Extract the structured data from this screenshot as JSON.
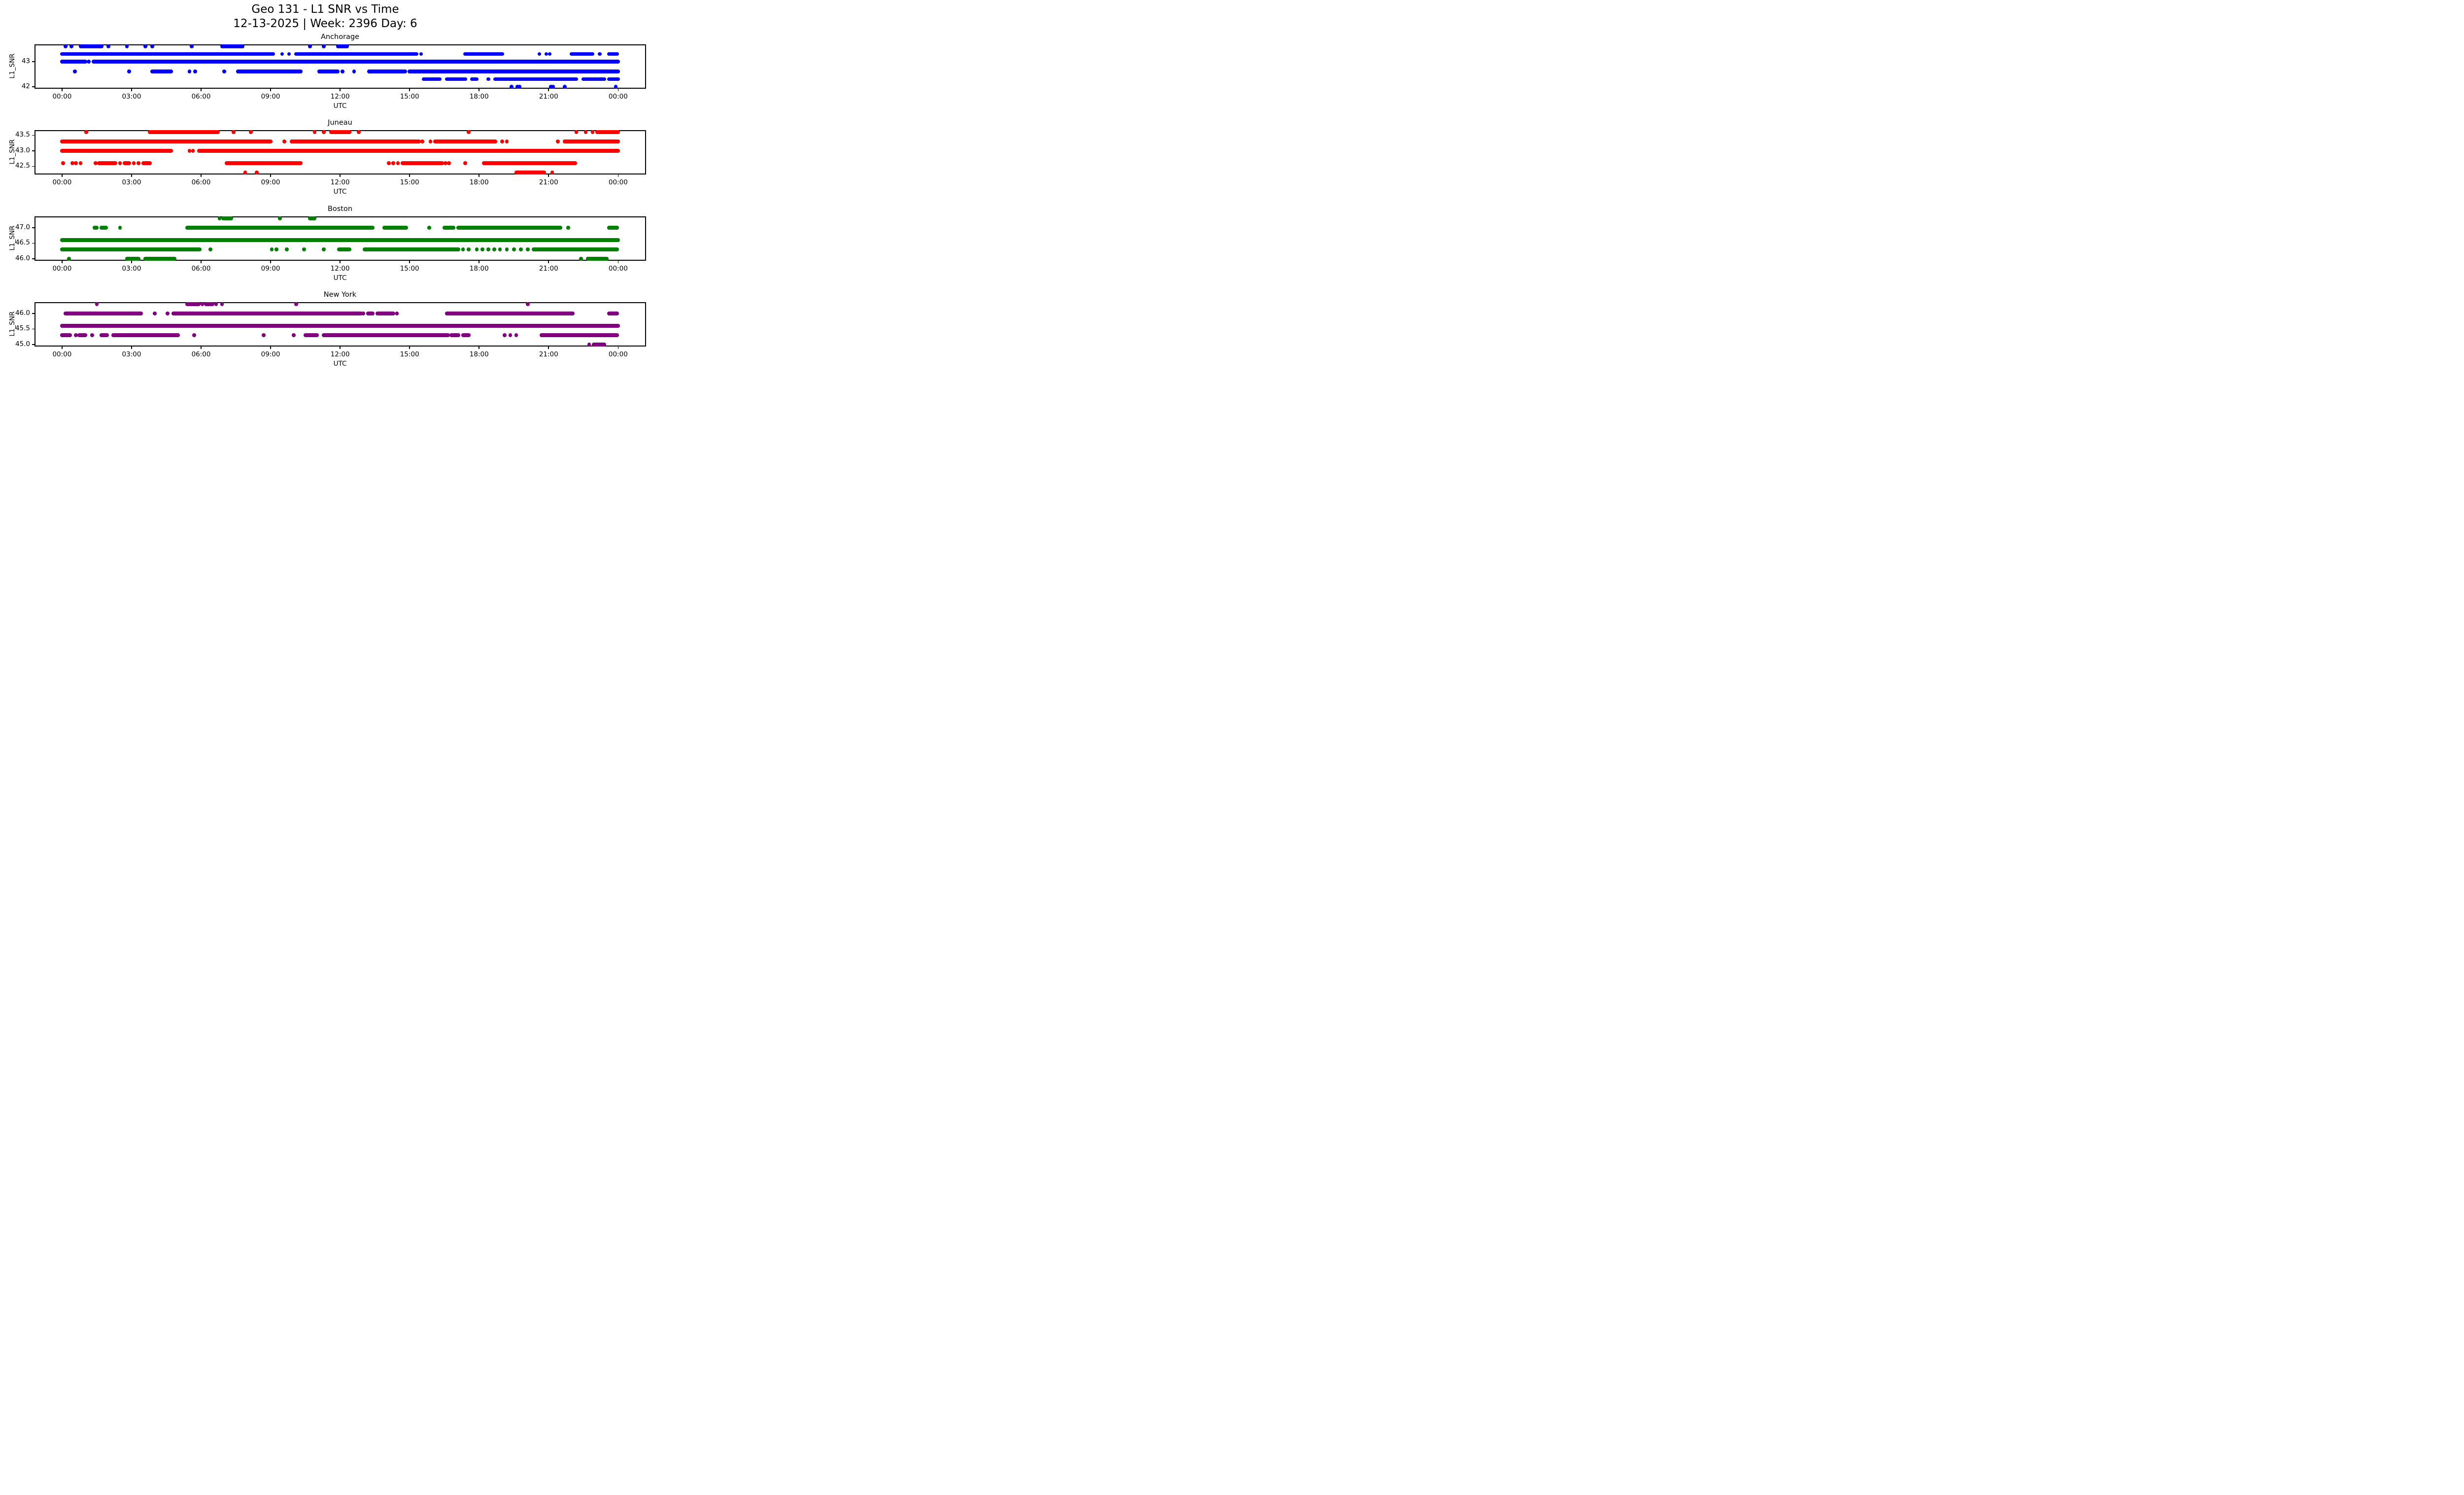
{
  "title": {
    "line1": "Geo 131 - L1 SNR vs Time",
    "line2": "12-13-2025 | Week: 2396 Day: 6"
  },
  "axis": {
    "xlabel": "UTC",
    "ylabel": "L1_SNR",
    "x_tick_hours": [
      0,
      3,
      6,
      9,
      12,
      15,
      18,
      21,
      24
    ],
    "x_tick_labels": [
      "00:00",
      "03:00",
      "06:00",
      "09:00",
      "12:00",
      "15:00",
      "18:00",
      "21:00",
      "00:00"
    ],
    "x_range_hours": [
      -1.2,
      25.2
    ]
  },
  "chart_data": [
    {
      "type": "scatter",
      "city": "Anchorage",
      "color": "#0000ff",
      "ylim": [
        41.92,
        43.68
      ],
      "yticks": [
        {
          "value": 43,
          "label": "43"
        },
        {
          "value": 42,
          "label": "42"
        }
      ],
      "levels": [
        {
          "value": 43.6,
          "segments": [
            [
              0.8,
              1.7
            ],
            [
              6.9,
              7.8
            ],
            [
              11.9,
              12.3
            ]
          ],
          "points": [
            0.15,
            0.4,
            2.0,
            2.8,
            3.6,
            3.9,
            5.6,
            10.7,
            11.3
          ]
        },
        {
          "value": 43.3,
          "segments": [
            [
              0.0,
              9.1
            ],
            [
              10.1,
              15.3
            ],
            [
              17.4,
              19.0
            ],
            [
              22.0,
              22.9
            ],
            [
              23.6,
              23.95
            ]
          ],
          "points": [
            9.5,
            9.8,
            15.5,
            20.6,
            20.9,
            21.05,
            23.2
          ]
        },
        {
          "value": 43.0,
          "segments": [
            [
              0.0,
              1.0
            ],
            [
              1.35,
              24.0
            ]
          ],
          "points": [
            1.15
          ]
        },
        {
          "value": 42.6,
          "segments": [
            [
              3.9,
              4.7
            ],
            [
              7.6,
              10.3
            ],
            [
              11.1,
              11.9
            ],
            [
              13.25,
              14.8
            ],
            [
              15.0,
              24.0
            ]
          ],
          "points": [
            0.55,
            2.9,
            5.5,
            5.75,
            7.0,
            12.1,
            12.6
          ]
        },
        {
          "value": 42.3,
          "segments": [
            [
              15.6,
              16.3
            ],
            [
              16.6,
              17.4
            ],
            [
              17.7,
              17.9
            ],
            [
              18.7,
              22.2
            ],
            [
              22.5,
              23.4
            ],
            [
              23.6,
              24.0
            ]
          ],
          "points": [
            18.4
          ]
        },
        {
          "value": 42.0,
          "segments": [],
          "points": [
            19.4,
            19.65,
            19.75,
            21.1,
            21.2,
            21.7,
            23.9
          ]
        }
      ]
    },
    {
      "type": "scatter",
      "city": "Juneau",
      "color": "#ff0000",
      "ylim": [
        42.235,
        43.665
      ],
      "yticks": [
        {
          "value": 43.5,
          "label": "43.5"
        },
        {
          "value": 43.0,
          "label": "43.0"
        },
        {
          "value": 42.5,
          "label": "42.5"
        }
      ],
      "levels": [
        {
          "value": 43.6,
          "segments": [
            [
              3.78,
              6.72
            ],
            [
              11.6,
              12.4
            ],
            [
              23.1,
              24.0
            ]
          ],
          "points": [
            1.05,
            7.4,
            8.15,
            10.9,
            11.3,
            12.8,
            17.55,
            22.2,
            22.6,
            22.9
          ]
        },
        {
          "value": 43.3,
          "segments": [
            [
              0.0,
              9.0
            ],
            [
              9.9,
              15.4
            ],
            [
              16.1,
              18.7
            ],
            [
              21.7,
              24.0
            ]
          ],
          "points": [
            9.6,
            15.55,
            15.9,
            19.0,
            19.2,
            21.4
          ]
        },
        {
          "value": 43.0,
          "segments": [
            [
              0.0,
              4.7
            ],
            [
              5.9,
              24.0
            ]
          ],
          "points": [
            5.5,
            5.65
          ]
        },
        {
          "value": 42.6,
          "segments": [
            [
              1.6,
              2.3
            ],
            [
              2.7,
              2.9
            ],
            [
              3.5,
              3.8
            ],
            [
              7.1,
              10.3
            ],
            [
              14.7,
              16.4
            ],
            [
              18.2,
              22.15
            ]
          ],
          "points": [
            0.05,
            0.45,
            0.6,
            0.8,
            1.45,
            2.5,
            3.1,
            3.3,
            14.1,
            14.3,
            14.5,
            16.55,
            16.7,
            17.4
          ]
        },
        {
          "value": 42.3,
          "segments": [
            [
              19.6,
              20.8
            ]
          ],
          "points": [
            7.9,
            8.4,
            21.15
          ]
        }
      ]
    },
    {
      "type": "scatter",
      "city": "Boston",
      "color": "#008000",
      "ylim": [
        45.935,
        47.365
      ],
      "yticks": [
        {
          "value": 47.0,
          "label": "47.0"
        },
        {
          "value": 46.5,
          "label": "46.5"
        },
        {
          "value": 46.0,
          "label": "46.0"
        }
      ],
      "levels": [
        {
          "value": 47.3,
          "segments": [
            [
              6.95,
              7.3
            ],
            [
              10.7,
              10.9
            ]
          ],
          "points": [
            6.8,
            9.4
          ]
        },
        {
          "value": 47.0,
          "segments": [
            [
              1.4,
              1.5
            ],
            [
              1.7,
              1.9
            ],
            [
              5.4,
              13.4
            ],
            [
              13.9,
              14.85
            ],
            [
              16.5,
              16.9
            ],
            [
              17.1,
              21.5
            ],
            [
              23.6,
              23.95
            ]
          ],
          "points": [
            2.5,
            15.85,
            21.85
          ]
        },
        {
          "value": 46.6,
          "segments": [
            [
              0.0,
              24.0
            ]
          ],
          "points": []
        },
        {
          "value": 46.3,
          "segments": [
            [
              0.0,
              5.95
            ],
            [
              11.95,
              12.4
            ],
            [
              13.05,
              17.1
            ],
            [
              20.35,
              23.95
            ]
          ],
          "points": [
            6.4,
            9.05,
            9.25,
            9.7,
            10.45,
            11.3,
            17.3,
            17.55,
            17.9,
            18.15,
            18.4,
            18.65,
            18.9,
            19.2,
            19.5,
            19.8,
            20.1
          ]
        },
        {
          "value": 46.0,
          "segments": [
            [
              2.8,
              3.3
            ],
            [
              3.6,
              4.85
            ],
            [
              22.7,
              23.5
            ]
          ],
          "points": [
            0.3,
            22.4
          ]
        }
      ]
    },
    {
      "type": "scatter",
      "city": "New York",
      "color": "#800080",
      "ylim": [
        44.935,
        46.365
      ],
      "yticks": [
        {
          "value": 46.0,
          "label": "46.0"
        },
        {
          "value": 45.5,
          "label": "45.5"
        },
        {
          "value": 45.0,
          "label": "45.0"
        }
      ],
      "levels": [
        {
          "value": 46.3,
          "segments": [
            [
              5.45,
              5.9
            ],
            [
              6.2,
              6.5
            ]
          ],
          "points": [
            1.5,
            5.4,
            6.05,
            6.65,
            6.9,
            10.1,
            20.1
          ]
        },
        {
          "value": 46.0,
          "segments": [
            [
              0.15,
              3.4
            ],
            [
              4.8,
              12.9
            ],
            [
              13.2,
              13.4
            ],
            [
              13.6,
              14.3
            ],
            [
              16.6,
              22.05
            ],
            [
              23.6,
              23.95
            ]
          ],
          "points": [
            4.0,
            4.55,
            13.0,
            14.45
          ]
        },
        {
          "value": 45.6,
          "segments": [
            [
              0.0,
              24.0
            ]
          ],
          "points": []
        },
        {
          "value": 45.3,
          "segments": [
            [
              0.0,
              0.35
            ],
            [
              0.75,
              1.0
            ],
            [
              1.7,
              1.95
            ],
            [
              2.2,
              5.0
            ],
            [
              10.5,
              11.0
            ],
            [
              11.3,
              16.65
            ],
            [
              16.8,
              17.1
            ],
            [
              17.3,
              17.55
            ],
            [
              20.7,
              23.95
            ]
          ],
          "points": [
            0.6,
            1.3,
            5.7,
            8.7,
            10.0,
            19.1,
            19.35,
            19.6
          ]
        },
        {
          "value": 45.0,
          "segments": [
            [
              22.95,
              23.4
            ]
          ],
          "points": [
            22.75
          ]
        }
      ]
    }
  ]
}
